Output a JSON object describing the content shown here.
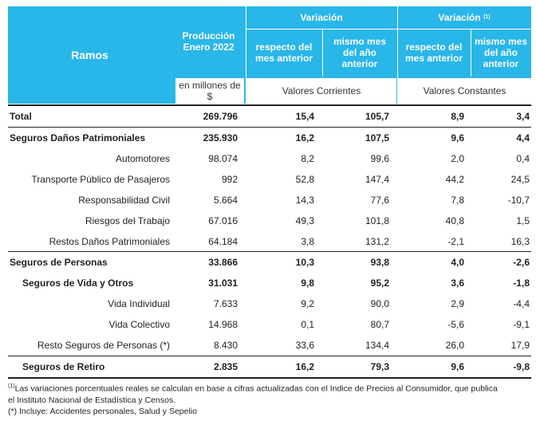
{
  "header": {
    "ramos": "Ramos",
    "produccion_line1": "Producción",
    "produccion_line2": "Enero 2022",
    "variacion": "Variación",
    "variacion_real": "Variación",
    "variacion_real_sup": "(1)",
    "respecto_line1": "respecto del",
    "respecto_line2": "mes anterior",
    "mismo_line1": "mismo mes",
    "mismo_line2": "del año",
    "mismo_line3": "anterior",
    "unidad_line1": "en millones de",
    "unidad_line2": "$",
    "valores_corrientes": "Valores Corrientes",
    "valores_constantes": "Valores Constantes"
  },
  "rows": [
    {
      "name": "Total",
      "produccion": "269.796",
      "corr_mes": "15,4",
      "corr_anio": "105,7",
      "const_mes": "8,9",
      "const_anio": "3,4"
    },
    {
      "name": "Seguros Daños Patrimoniales",
      "produccion": "235.930",
      "corr_mes": "16,2",
      "corr_anio": "107,5",
      "const_mes": "9,6",
      "const_anio": "4,4"
    },
    {
      "name": "Automotores",
      "produccion": "98.074",
      "corr_mes": "8,2",
      "corr_anio": "99,6",
      "const_mes": "2,0",
      "const_anio": "0,4"
    },
    {
      "name": "Transporte Público de Pasajeros",
      "produccion": "992",
      "corr_mes": "52,8",
      "corr_anio": "147,4",
      "const_mes": "44,2",
      "const_anio": "24,5"
    },
    {
      "name": "Responsabilidad Civil",
      "produccion": "5.664",
      "corr_mes": "14,3",
      "corr_anio": "77,6",
      "const_mes": "7,8",
      "const_anio": "-10,7"
    },
    {
      "name": "Riesgos del Trabajo",
      "produccion": "67.016",
      "corr_mes": "49,3",
      "corr_anio": "101,8",
      "const_mes": "40,8",
      "const_anio": "1,5"
    },
    {
      "name": "Restos Daños Patrimoniales",
      "produccion": "64.184",
      "corr_mes": "3,8",
      "corr_anio": "131,2",
      "const_mes": "-2,1",
      "const_anio": "16,3"
    },
    {
      "name": "Seguros de Personas",
      "produccion": "33.866",
      "corr_mes": "10,3",
      "corr_anio": "93,8",
      "const_mes": "4,0",
      "const_anio": "-2,6"
    },
    {
      "name": "Seguros de Vida y Otros",
      "produccion": "31.031",
      "corr_mes": "9,8",
      "corr_anio": "95,2",
      "const_mes": "3,6",
      "const_anio": "-1,8"
    },
    {
      "name": "Vida Individual",
      "produccion": "7.633",
      "corr_mes": "9,2",
      "corr_anio": "90,0",
      "const_mes": "2,9",
      "const_anio": "-4,4"
    },
    {
      "name": "Vida Colectivo",
      "produccion": "14.968",
      "corr_mes": "0,1",
      "corr_anio": "80,7",
      "const_mes": "-5,6",
      "const_anio": "-9,1"
    },
    {
      "name": "Resto Seguros de Personas (*)",
      "produccion": "8.430",
      "corr_mes": "33,6",
      "corr_anio": "134,4",
      "const_mes": "26,0",
      "const_anio": "17,9"
    },
    {
      "name": "Seguros de Retiro",
      "produccion": "2.835",
      "corr_mes": "16,2",
      "corr_anio": "79,3",
      "const_mes": "9,6",
      "const_anio": "-9,8"
    }
  ],
  "footnotes": {
    "note1_sup": "(1)",
    "note1_line1": "Las variaciones porcentuales reales se calculan en base a cifras actualizadas con  el Indice de Precios al Consumidor, que publica",
    "note1_line2": "el Instituto Nacional de Estadística y  Censos.",
    "note2": "(*) Incluye: Accidentes personales, Salud y Sepelio"
  }
}
